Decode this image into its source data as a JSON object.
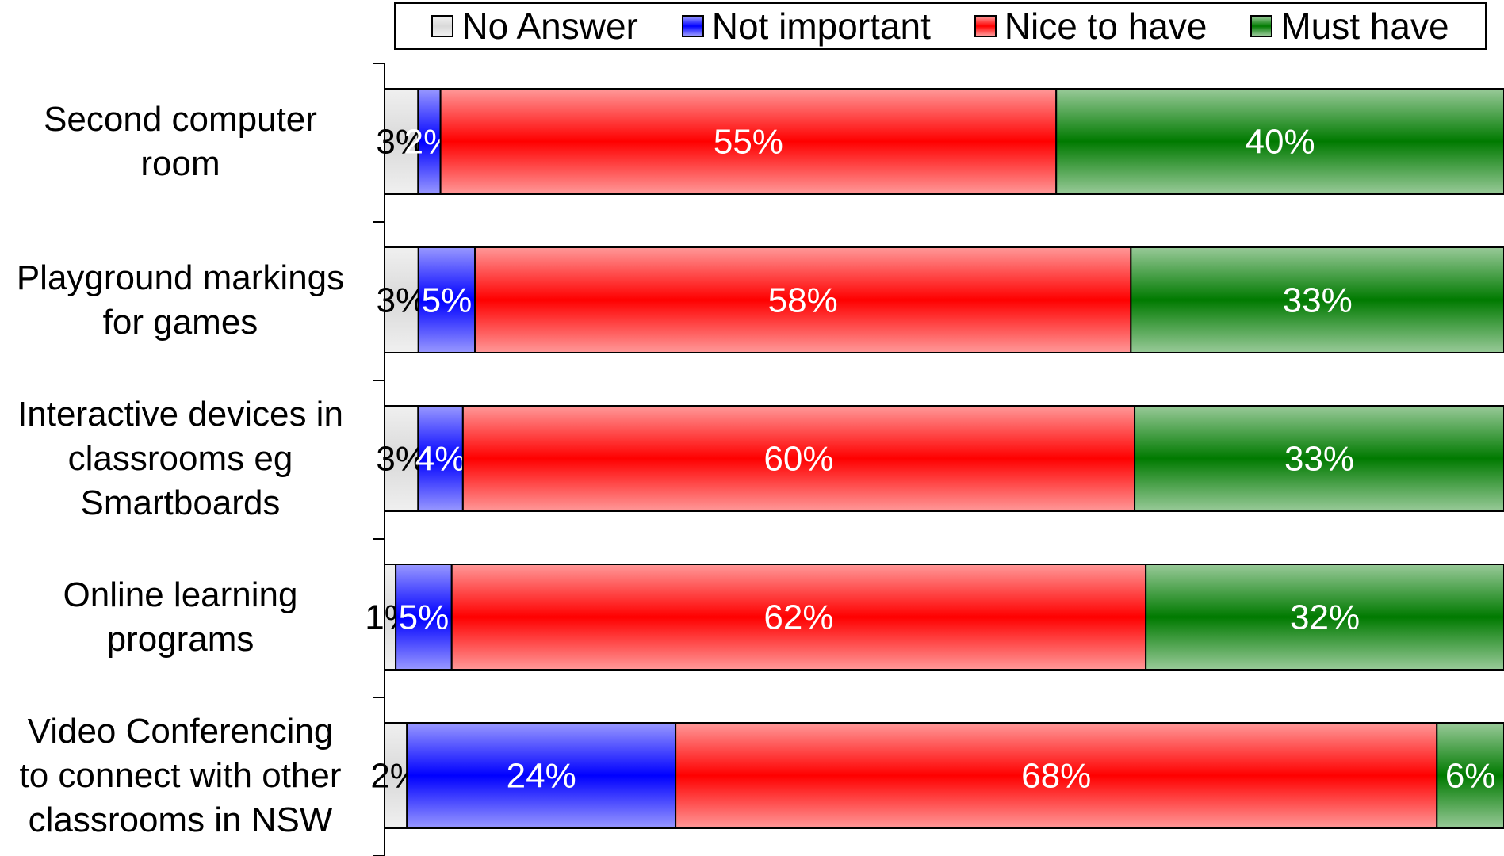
{
  "chart_data": {
    "type": "bar",
    "orientation": "horizontal",
    "stacked": true,
    "percent_stacked": true,
    "legend_position": "top",
    "grid": false,
    "categories": [
      "Second computer room",
      "Playground markings for games",
      "Interactive devices in classrooms eg Smartboards",
      "Online learning programs",
      "Video Conferencing to connect with other classrooms in NSW"
    ],
    "category_lines": [
      [
        "Second computer",
        "room"
      ],
      [
        "Playground markings",
        "for games"
      ],
      [
        "Interactive devices in",
        "classrooms eg",
        "Smartboards"
      ],
      [
        "Online learning",
        "programs"
      ],
      [
        "Video Conferencing",
        "to connect with other",
        "classrooms in NSW"
      ]
    ],
    "series": [
      {
        "name": "No Answer",
        "color": "#d9d9d9",
        "values": [
          3,
          3,
          3,
          1,
          2
        ],
        "labels": [
          "3%",
          "3%",
          "3%",
          "1%",
          "2%"
        ]
      },
      {
        "name": "Not important",
        "color": "#0000ff",
        "values": [
          2,
          5,
          4,
          5,
          24
        ],
        "labels": [
          "2%",
          "5%",
          "4%",
          "5%",
          "24%"
        ]
      },
      {
        "name": "Nice to have",
        "color": "#ff0000",
        "values": [
          55,
          58,
          60,
          62,
          68
        ],
        "labels": [
          "55%",
          "58%",
          "60%",
          "62%",
          "68%"
        ]
      },
      {
        "name": "Must have",
        "color": "#007a00",
        "values": [
          40,
          33,
          33,
          32,
          6
        ],
        "labels": [
          "40%",
          "33%",
          "33%",
          "32%",
          "6%"
        ]
      }
    ]
  }
}
